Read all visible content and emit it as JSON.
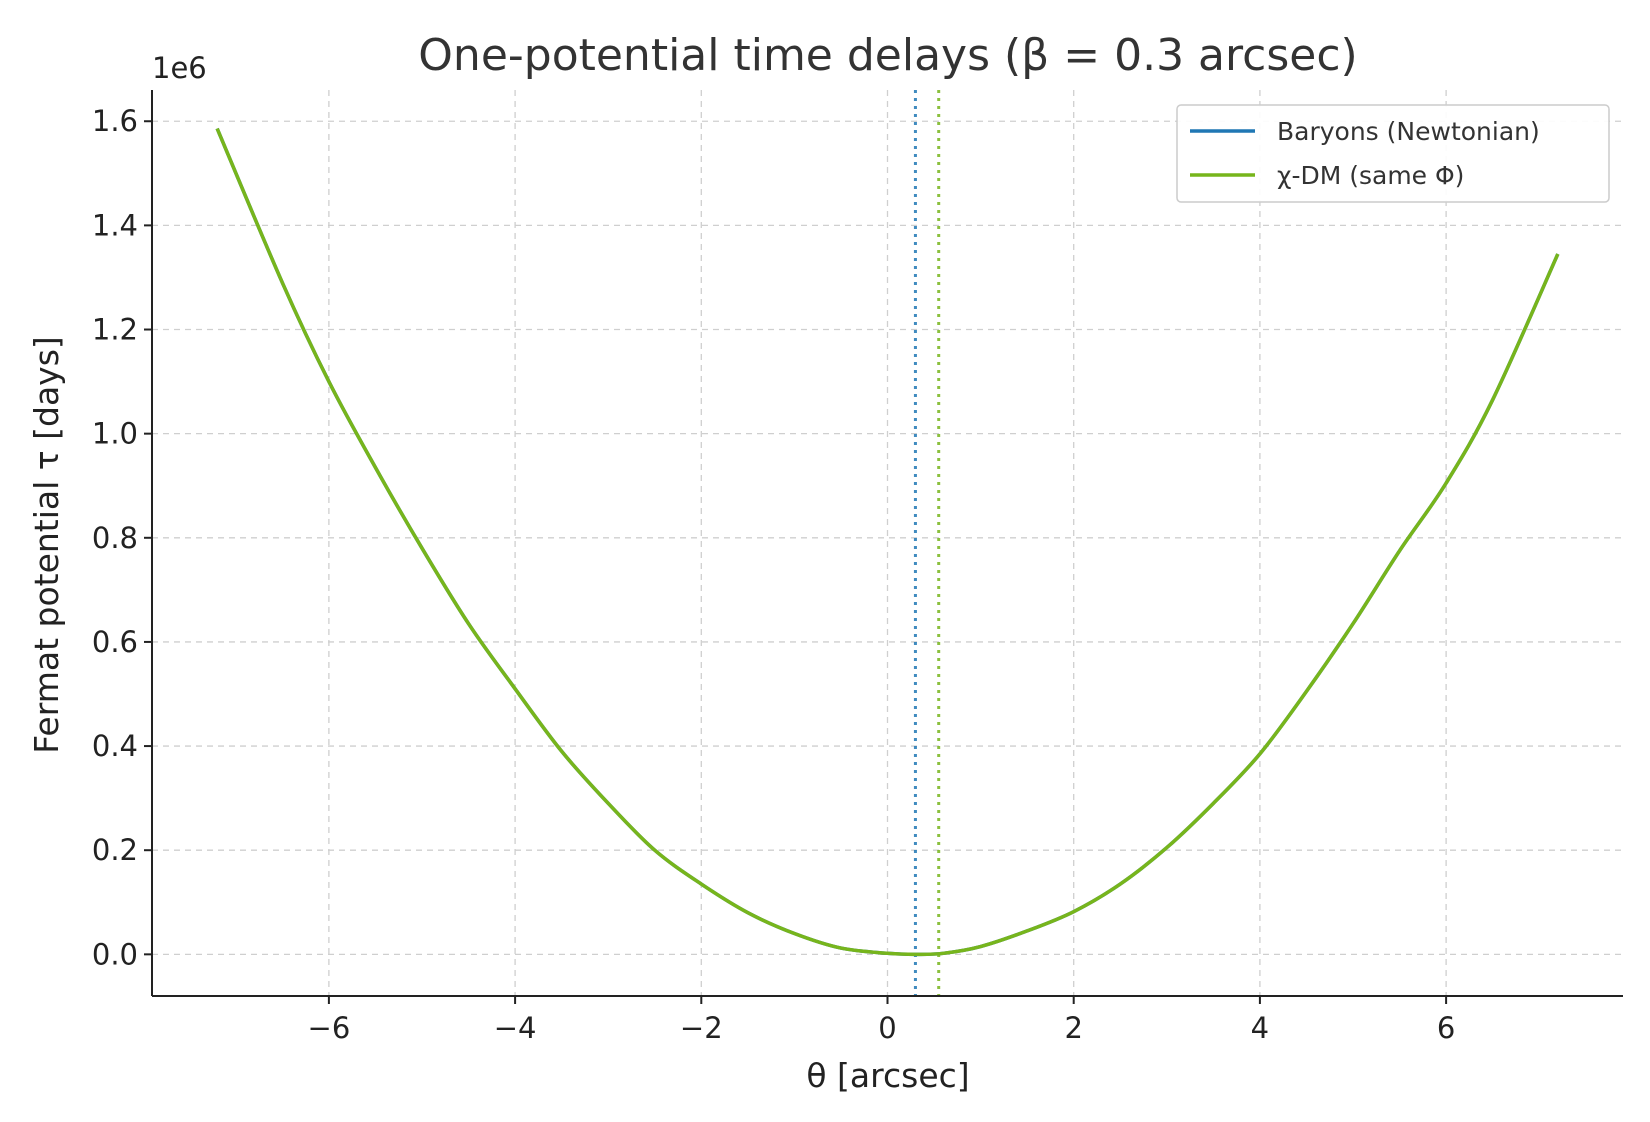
{
  "chart_data": {
    "type": "line",
    "title": "One-potential time delays (β = 0.3 arcsec)",
    "xlabel": "θ [arcsec]",
    "ylabel": "Fermat potential τ [days]",
    "y_offset_label": "1e6",
    "xlim": [
      -7.9,
      7.9
    ],
    "ylim": [
      -0.08,
      1.66
    ],
    "xticks": [
      -6,
      -4,
      -2,
      0,
      2,
      4,
      6
    ],
    "xtick_labels": [
      "−6",
      "−4",
      "−2",
      "0",
      "2",
      "4",
      "6"
    ],
    "yticks": [
      0.0,
      0.2,
      0.4,
      0.6,
      0.8,
      1.0,
      1.2,
      1.4,
      1.6
    ],
    "ytick_labels": [
      "0.0",
      "0.2",
      "0.4",
      "0.6",
      "0.8",
      "1.0",
      "1.2",
      "1.4",
      "1.6"
    ],
    "grid": true,
    "legend_position": "top-right",
    "series": [
      {
        "name": "Baryons (Newtonian)",
        "color": "#1f77b4",
        "x": [
          -7.2,
          -6.5,
          -6.0,
          -5.5,
          -5.0,
          -4.5,
          -4.0,
          -3.5,
          -3.0,
          -2.5,
          -2.0,
          -1.5,
          -1.0,
          -0.5,
          0.0,
          0.3,
          0.6,
          1.0,
          1.5,
          2.0,
          2.5,
          3.0,
          3.5,
          4.0,
          4.5,
          5.0,
          5.5,
          6.0,
          6.5,
          7.2
        ],
        "y": [
          1.586,
          1.29,
          1.1,
          0.935,
          0.78,
          0.635,
          0.51,
          0.39,
          0.29,
          0.2,
          0.135,
          0.08,
          0.04,
          0.012,
          0.002,
          0.0,
          0.002,
          0.015,
          0.045,
          0.082,
          0.135,
          0.205,
          0.29,
          0.385,
          0.505,
          0.635,
          0.775,
          0.905,
          1.065,
          1.345
        ]
      },
      {
        "name": "χ-DM (same Φ)",
        "color": "#77b51c",
        "x": [
          -7.2,
          -6.5,
          -6.0,
          -5.5,
          -5.0,
          -4.5,
          -4.0,
          -3.5,
          -3.0,
          -2.5,
          -2.0,
          -1.5,
          -1.0,
          -0.5,
          0.0,
          0.3,
          0.6,
          1.0,
          1.5,
          2.0,
          2.5,
          3.0,
          3.5,
          4.0,
          4.5,
          5.0,
          5.5,
          6.0,
          6.5,
          7.2
        ],
        "y": [
          1.586,
          1.29,
          1.1,
          0.935,
          0.78,
          0.635,
          0.51,
          0.39,
          0.29,
          0.2,
          0.135,
          0.08,
          0.04,
          0.012,
          0.002,
          0.0,
          0.002,
          0.015,
          0.045,
          0.082,
          0.135,
          0.205,
          0.29,
          0.385,
          0.505,
          0.635,
          0.775,
          0.905,
          1.065,
          1.345
        ]
      }
    ],
    "vlines": [
      {
        "x": 0.3,
        "color": "#1f77b4",
        "style": "dotted",
        "series": "Baryons (Newtonian)"
      },
      {
        "x": 0.55,
        "color": "#77b51c",
        "style": "dotted",
        "series": "χ-DM (same Φ)"
      }
    ]
  }
}
